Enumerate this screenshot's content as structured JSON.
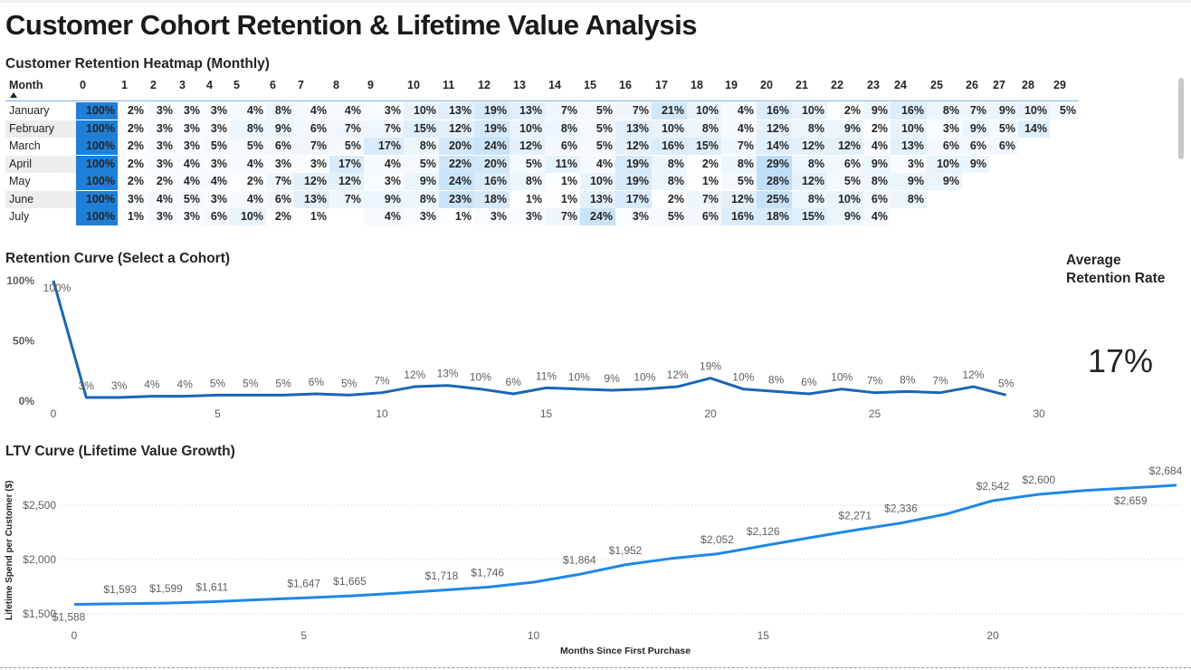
{
  "title": "Customer Cohort Retention & Lifetime Value Analysis",
  "heatmap": {
    "title": "Customer Retention Heatmap (Monthly)",
    "row_header": "Month",
    "sort_icon": "sort-ascending-icon",
    "columns": [
      0,
      1,
      2,
      3,
      4,
      5,
      6,
      7,
      8,
      9,
      10,
      11,
      12,
      13,
      14,
      15,
      16,
      17,
      18,
      19,
      20,
      21,
      22,
      23,
      24,
      25,
      26,
      27,
      28,
      29
    ],
    "colors": {
      "max": "#1f7fd6",
      "light": "#bcdcf6"
    },
    "rows": [
      {
        "label": "January",
        "values": [
          100,
          2,
          3,
          3,
          3,
          4,
          8,
          4,
          4,
          3,
          10,
          13,
          19,
          13,
          7,
          5,
          7,
          21,
          10,
          4,
          16,
          10,
          2,
          9,
          16,
          8,
          7,
          9,
          10,
          5
        ]
      },
      {
        "label": "February",
        "values": [
          100,
          2,
          3,
          3,
          3,
          8,
          9,
          6,
          7,
          7,
          15,
          12,
          19,
          10,
          8,
          5,
          13,
          10,
          8,
          4,
          12,
          8,
          9,
          2,
          10,
          3,
          9,
          5,
          14
        ]
      },
      {
        "label": "March",
        "values": [
          100,
          2,
          3,
          3,
          5,
          5,
          6,
          7,
          5,
          17,
          8,
          20,
          24,
          12,
          6,
          5,
          12,
          16,
          15,
          7,
          14,
          12,
          12,
          4,
          13,
          6,
          6,
          6
        ]
      },
      {
        "label": "April",
        "values": [
          100,
          2,
          3,
          4,
          3,
          4,
          3,
          3,
          17,
          4,
          5,
          22,
          20,
          5,
          11,
          4,
          19,
          8,
          2,
          8,
          29,
          8,
          6,
          9,
          3,
          10,
          9
        ]
      },
      {
        "label": "May",
        "values": [
          100,
          2,
          2,
          4,
          4,
          2,
          7,
          12,
          12,
          3,
          9,
          24,
          16,
          8,
          1,
          10,
          19,
          8,
          1,
          5,
          28,
          12,
          5,
          8,
          9,
          9
        ]
      },
      {
        "label": "June",
        "values": [
          100,
          3,
          4,
          5,
          3,
          4,
          6,
          13,
          7,
          9,
          8,
          23,
          18,
          1,
          1,
          13,
          17,
          2,
          7,
          12,
          25,
          8,
          10,
          6,
          8
        ]
      },
      {
        "label": "July",
        "values": [
          100,
          1,
          3,
          3,
          6,
          10,
          2,
          1,
          null,
          4,
          3,
          1,
          3,
          3,
          7,
          24,
          3,
          5,
          6,
          16,
          18,
          15,
          9,
          4
        ]
      }
    ]
  },
  "kpi": {
    "label_line1": "Average",
    "label_line2": "Retention Rate",
    "value": "17%"
  },
  "chart_data": [
    {
      "type": "line",
      "title": "Retention Curve (Select a Cohort)",
      "x": [
        0,
        1,
        2,
        3,
        4,
        5,
        6,
        7,
        8,
        9,
        10,
        11,
        12,
        13,
        14,
        15,
        16,
        17,
        18,
        19,
        20,
        21,
        22,
        23,
        24,
        25,
        26,
        27,
        28,
        29
      ],
      "values": [
        100,
        3,
        3,
        4,
        4,
        5,
        5,
        5,
        6,
        5,
        7,
        12,
        13,
        10,
        6,
        11,
        10,
        9,
        10,
        12,
        19,
        10,
        8,
        6,
        10,
        7,
        8,
        7,
        12,
        5
      ],
      "xlim": [
        0,
        30
      ],
      "ylim": [
        0,
        100
      ],
      "xticks": [
        0,
        5,
        10,
        15,
        20,
        25,
        30
      ],
      "yticks": [
        "0%",
        "50%",
        "100%"
      ],
      "color": "#1a66b5",
      "grid": false
    },
    {
      "type": "line",
      "title": "LTV Curve (Lifetime Value Growth)",
      "xlabel": "Months Since First Purchase",
      "ylabel": "Lifetime Spend per Customer ($)",
      "x": [
        0,
        1,
        2,
        3,
        4,
        5,
        6,
        7,
        8,
        9,
        10,
        11,
        12,
        13,
        14,
        15,
        16,
        17,
        18,
        19,
        20,
        21,
        22,
        23,
        24
      ],
      "values": [
        1588,
        1593,
        1599,
        1611,
        1630,
        1647,
        1665,
        1690,
        1718,
        1746,
        1792,
        1864,
        1952,
        2010,
        2052,
        2126,
        2200,
        2271,
        2336,
        2420,
        2542,
        2600,
        2635,
        2659,
        2684
      ],
      "labels": [
        "$1,588",
        "$1,593",
        "$1,599",
        "$1,611",
        "",
        "$1,647",
        "$1,665",
        "",
        "$1,718",
        "$1,746",
        "",
        "$1,864",
        "$1,952",
        "",
        "$2,052",
        "$2,126",
        "",
        "$2,271",
        "$2,336",
        "",
        "$2,542",
        "$2,600",
        "",
        "$2,659",
        "$2,684"
      ],
      "ylim": [
        1400,
        2750
      ],
      "xticks": [
        0,
        5,
        10,
        15,
        20
      ],
      "yticks": [
        {
          "v": 1500,
          "t": "$1,500"
        },
        {
          "v": 2000,
          "t": "$2,000"
        },
        {
          "v": 2500,
          "t": "$2,500"
        }
      ],
      "color": "#1e88e5",
      "grid": "dotted horizontal"
    }
  ]
}
